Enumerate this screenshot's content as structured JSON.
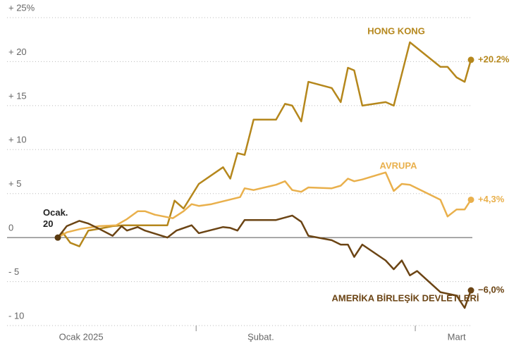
{
  "chart_data": {
    "type": "line",
    "annotation": "Ocak. 20",
    "xlim": [
      -5,
      50
    ],
    "ylim": [
      -10,
      25
    ],
    "xticks": [
      {
        "value": 2.6,
        "label": "Ocak 2025"
      },
      {
        "value": 22.6,
        "label": "Şubat."
      },
      {
        "value": 44.4,
        "label": "Mart"
      }
    ],
    "xseparators": [
      15.4,
      39.8
    ],
    "yticks": [
      {
        "value": 25,
        "label": "+ 25%"
      },
      {
        "value": 20,
        "label": "+ 20"
      },
      {
        "value": 15,
        "label": "+ 15"
      },
      {
        "value": 10,
        "label": "+ 10"
      },
      {
        "value": 5,
        "label": "+  5"
      },
      0,
      {
        "value": -5,
        "label": "- 5"
      },
      {
        "value": -10,
        "label": "- 10"
      }
    ],
    "grid": true,
    "series": [
      {
        "name": "HONG KONG",
        "color": "#b5871c",
        "end_label": "+20.2%",
        "x": [
          0,
          0.6,
          1.4,
          2.4,
          3.4,
          4.6,
          6.1,
          7.3,
          12.2,
          13.0,
          14.0,
          15.7,
          18.4,
          19.2,
          20.0,
          20.8,
          21.8,
          24.3,
          25.3,
          26.1,
          27.1,
          27.9,
          30.5,
          31.5,
          32.3,
          33.0,
          33.9,
          36.5,
          37.4,
          39.2,
          42.6,
          43.4,
          44.4,
          45.3,
          46.0
        ],
        "values": [
          0,
          0.5,
          -0.6,
          -1.0,
          0.8,
          1.0,
          1.3,
          1.4,
          1.4,
          4.2,
          3.3,
          6.1,
          8.0,
          6.7,
          9.6,
          9.4,
          13.4,
          13.4,
          15.2,
          15.0,
          13.2,
          17.7,
          17.0,
          15.4,
          19.3,
          19.0,
          15.0,
          15.4,
          15.0,
          22.2,
          19.4,
          19.4,
          18.2,
          17.7,
          20.2
        ]
      },
      {
        "name": "AVRUPA",
        "color": "#e9b04c",
        "end_label": "+4,3%",
        "x": [
          0,
          1.0,
          2.6,
          4.6,
          6.5,
          7.7,
          8.9,
          9.7,
          10.8,
          12.8,
          14.0,
          14.9,
          15.7,
          17.1,
          20.3,
          20.8,
          21.8,
          24.3,
          25.3,
          26.1,
          27.1,
          27.9,
          30.5,
          31.5,
          32.3,
          33.0,
          33.9,
          36.5,
          37.4,
          38.3,
          39.2,
          42.6,
          43.4,
          44.4,
          45.3,
          46.0
        ],
        "values": [
          0,
          0.6,
          1.0,
          1.3,
          1.4,
          2.1,
          3.0,
          3.0,
          2.6,
          2.2,
          3.0,
          3.8,
          3.6,
          3.8,
          4.6,
          5.6,
          5.4,
          6.0,
          6.4,
          5.4,
          5.2,
          5.7,
          5.6,
          5.9,
          6.7,
          6.4,
          6.6,
          7.4,
          5.3,
          6.1,
          6.0,
          4.3,
          2.4,
          3.2,
          3.2,
          4.3
        ]
      },
      {
        "name": "AMERİKA BİRLEŞİK DEVLETLERİ",
        "color": "#6b4414",
        "end_label": "−6,0%",
        "x": [
          0,
          1.0,
          2.4,
          3.4,
          4.6,
          6.1,
          7.1,
          7.7,
          8.9,
          9.7,
          12.2,
          13.2,
          14.9,
          15.7,
          18.4,
          19.2,
          20.0,
          20.8,
          24.3,
          26.1,
          27.1,
          27.9,
          30.5,
          31.5,
          32.3,
          33.0,
          33.9,
          36.5,
          37.4,
          38.3,
          39.2,
          40.0,
          42.6,
          44.4,
          45.3,
          46.0
        ],
        "values": [
          0,
          1.3,
          1.9,
          1.6,
          1.0,
          0.2,
          1.3,
          0.8,
          1.2,
          0.8,
          0,
          0.8,
          1.4,
          0.5,
          1.2,
          1.1,
          0.8,
          2.0,
          2.0,
          2.5,
          1.8,
          0.2,
          -0.3,
          -0.8,
          -0.8,
          -2.2,
          -0.8,
          -2.6,
          -3.6,
          -2.6,
          -4.3,
          -3.8,
          -6.2,
          -6.6,
          -8.0,
          -6.0
        ]
      }
    ]
  }
}
